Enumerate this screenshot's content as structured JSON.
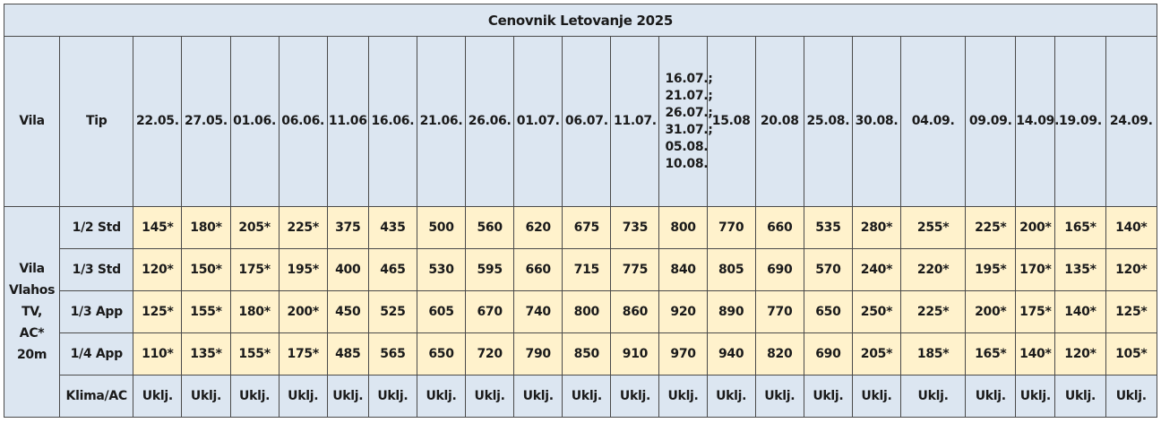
{
  "title": "Cenovnik Letovanje 2025",
  "headers": {
    "vila": "Vila",
    "tip": "Tip",
    "dates": [
      "22.05.",
      "27.05.",
      "01.06.",
      "06.06.",
      "11.06",
      "16.06.",
      "21.06.",
      "26.06.",
      "01.07.",
      "06.07.",
      "11.07.",
      "16.07.; 21.07.; 26.07.; 31.07.; 05.08. 10.08.",
      "15.08",
      "20.08",
      "25.08.",
      "30.08.",
      "04.09.",
      "09.09.",
      "14.09.",
      "19.09.",
      "24.09."
    ]
  },
  "vila_label_lines": [
    "Vila",
    "Vlahos",
    "TV,",
    "AC*",
    "20m"
  ],
  "rows": [
    {
      "tip": "1/2 Std",
      "values": [
        "145*",
        "180*",
        "205*",
        "225*",
        "375",
        "435",
        "500",
        "560",
        "620",
        "675",
        "735",
        "800",
        "770",
        "660",
        "535",
        "280*",
        "255*",
        "225*",
        "200*",
        "165*",
        "140*"
      ]
    },
    {
      "tip": "1/3 Std",
      "values": [
        "120*",
        "150*",
        "175*",
        "195*",
        "400",
        "465",
        "530",
        "595",
        "660",
        "715",
        "775",
        "840",
        "805",
        "690",
        "570",
        "240*",
        "220*",
        "195*",
        "170*",
        "135*",
        "120*"
      ]
    },
    {
      "tip": "1/3 App",
      "values": [
        "125*",
        "155*",
        "180*",
        "200*",
        "450",
        "525",
        "605",
        "670",
        "740",
        "800",
        "860",
        "920",
        "890",
        "770",
        "650",
        "250*",
        "225*",
        "200*",
        "175*",
        "140*",
        "125*"
      ]
    },
    {
      "tip": "1/4 App",
      "values": [
        "110*",
        "135*",
        "155*",
        "175*",
        "485",
        "565",
        "650",
        "720",
        "790",
        "850",
        "910",
        "970",
        "940",
        "820",
        "690",
        "205*",
        "185*",
        "165*",
        "140*",
        "120*",
        "105*"
      ]
    }
  ],
  "klima": {
    "label": "Klima/AC",
    "values": [
      "Uklj.",
      "Uklj.",
      "Uklj.",
      "Uklj.",
      "Uklj.",
      "Uklj.",
      "Uklj.",
      "Uklj.",
      "Uklj.",
      "Uklj.",
      "Uklj.",
      "Uklj.",
      "Uklj.",
      "Uklj.",
      "Uklj.",
      "Uklj.",
      "Uklj.",
      "Uklj.",
      "Uklj.",
      "Uklj.",
      "Uklj."
    ]
  },
  "colors": {
    "header_bg": "#dce6f1",
    "value_bg": "#fff2cc",
    "border": "#4a4a4a"
  }
}
